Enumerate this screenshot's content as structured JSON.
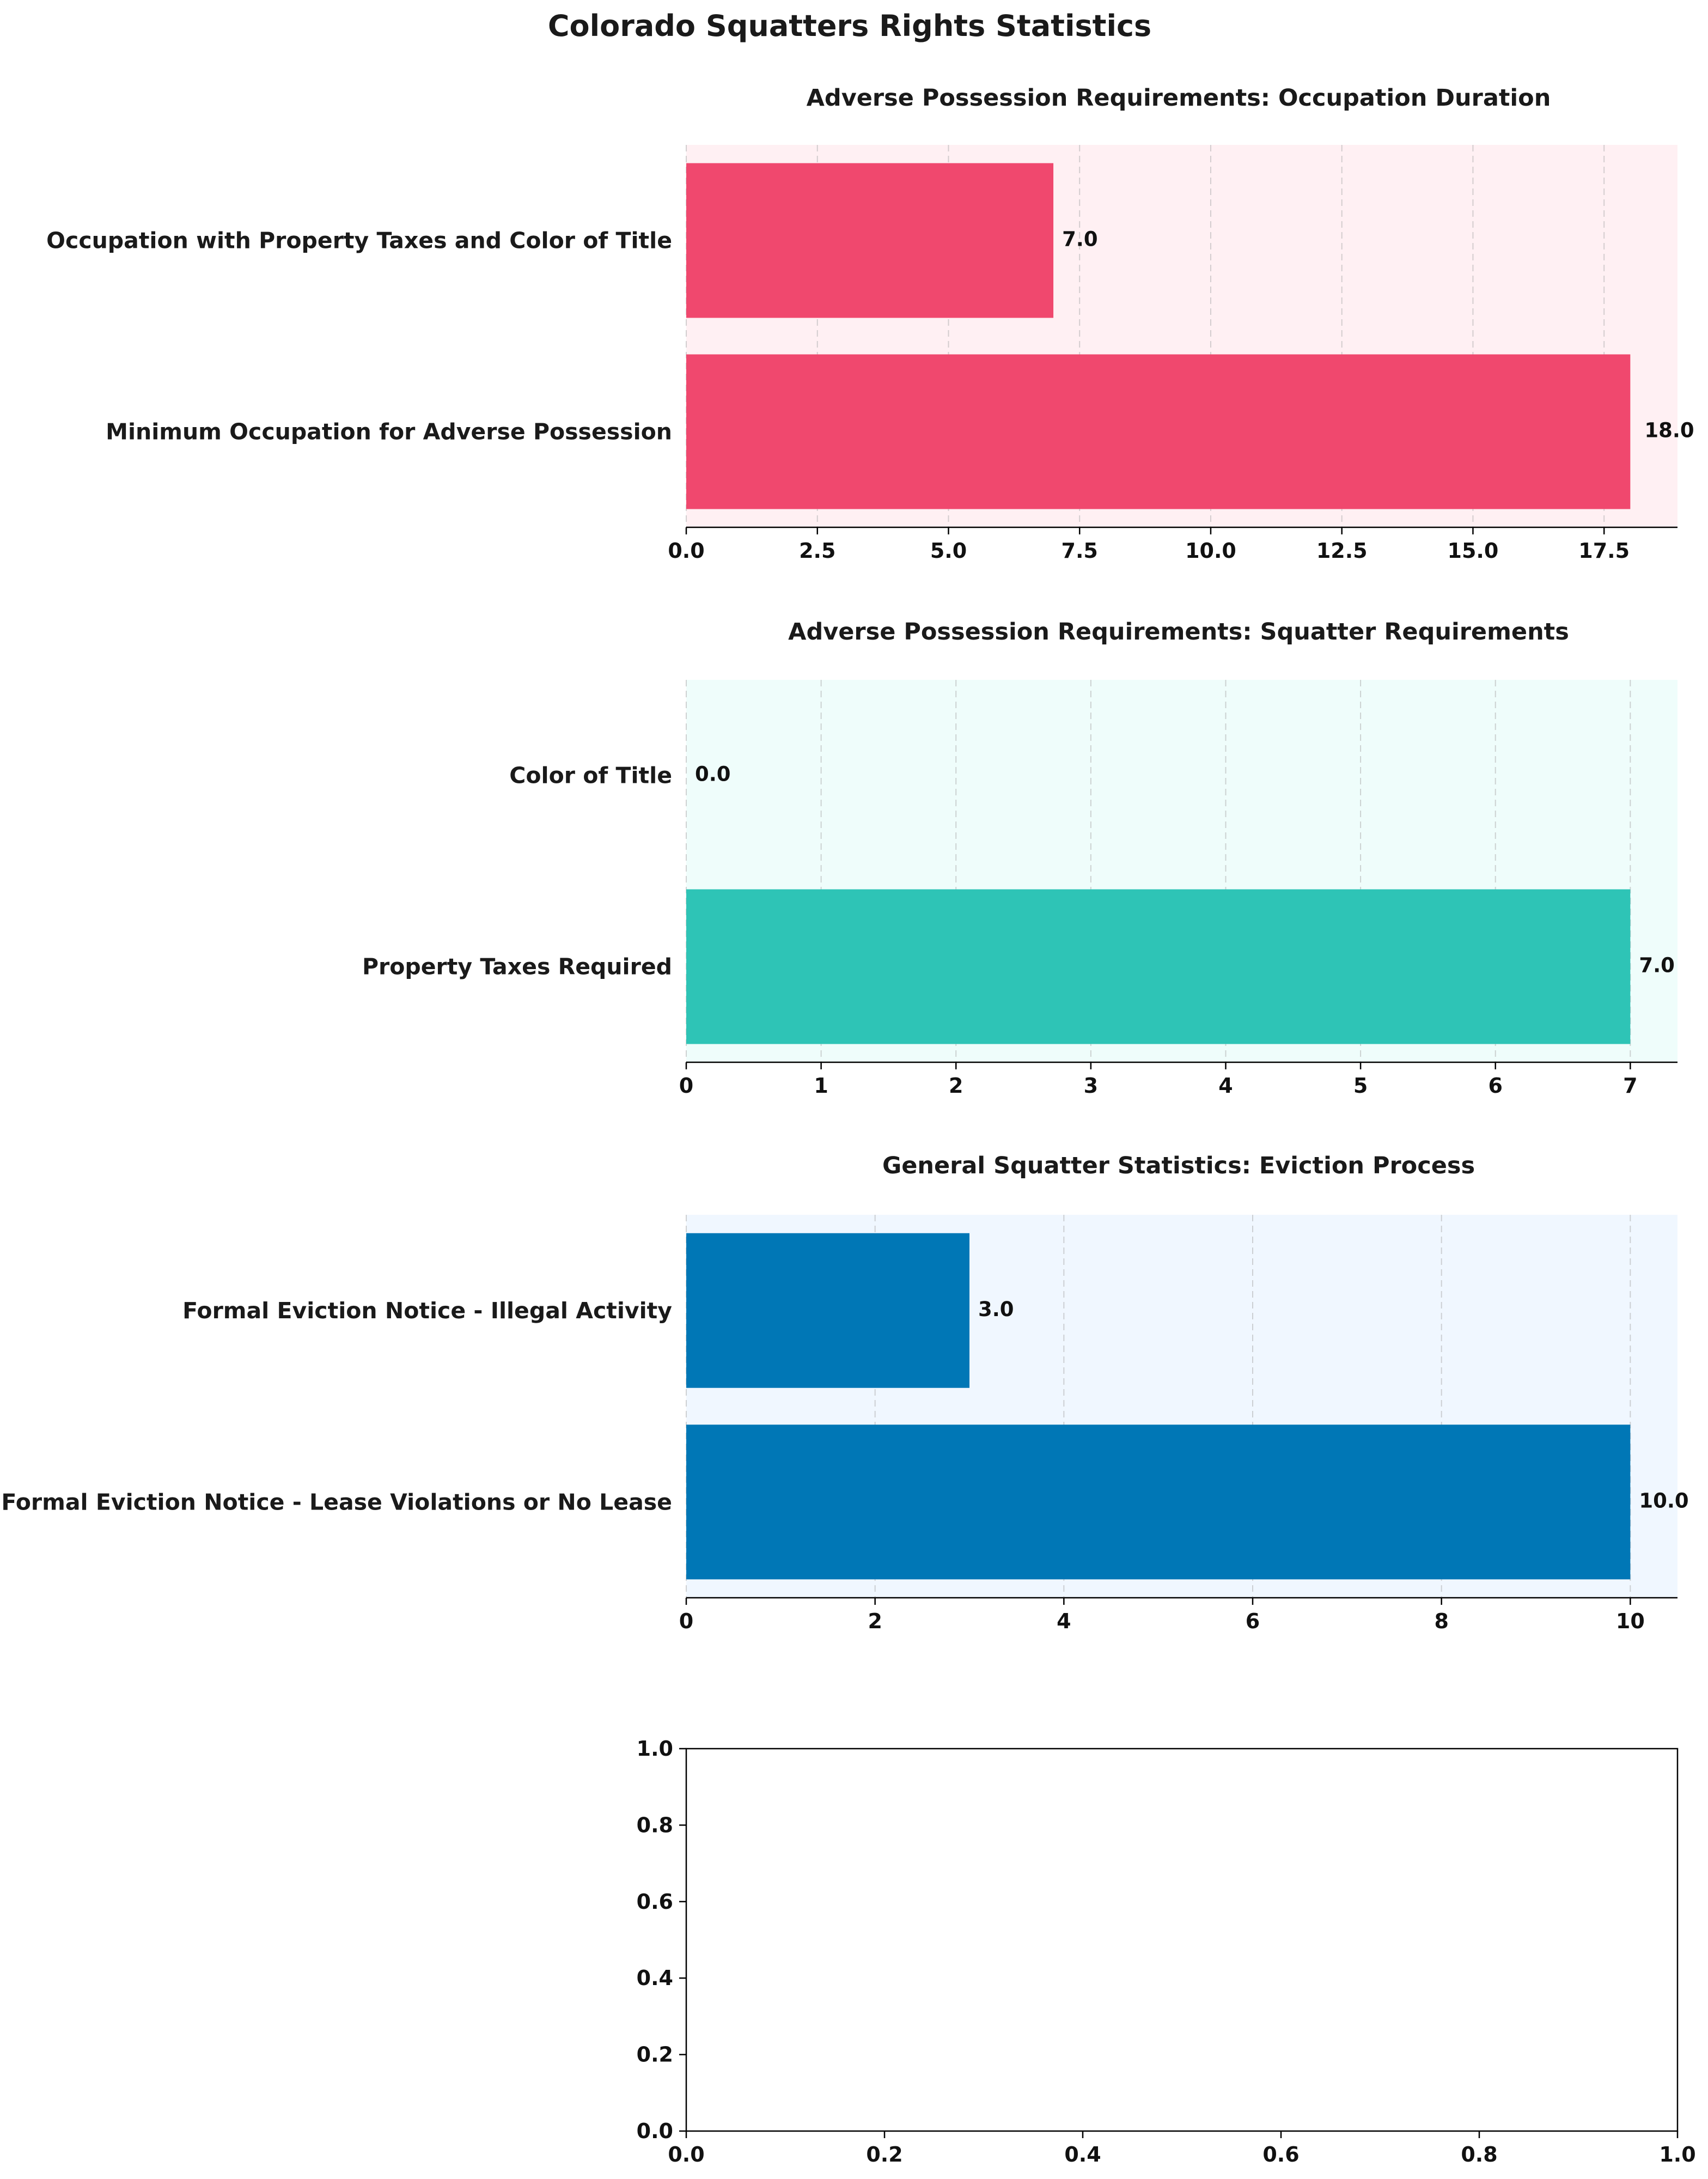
{
  "figure": {
    "title": "Colorado Squatters Rights Statistics"
  },
  "chart_data": [
    {
      "type": "bar",
      "orientation": "horizontal",
      "title": "Adverse Possession Requirements: Occupation Duration",
      "categories": [
        "Minimum Occupation for Adverse Possession",
        "Occupation with Property Taxes and Color of Title"
      ],
      "values": [
        18,
        7
      ],
      "value_labels": [
        "18.0",
        "7.0"
      ],
      "xlim": [
        0,
        18.9
      ],
      "xticks": [
        0,
        2.5,
        5,
        7.5,
        10,
        12.5,
        15,
        17.5
      ],
      "xtick_labels": [
        "0.0",
        "2.5",
        "5.0",
        "7.5",
        "10.0",
        "12.5",
        "15.0",
        "17.5"
      ],
      "bar_color": "#f0486e",
      "background_color": "#fff0f3",
      "grid": true,
      "xlabel": "",
      "ylabel": ""
    },
    {
      "type": "bar",
      "orientation": "horizontal",
      "title": "Adverse Possession Requirements: Squatter Requirements",
      "categories": [
        "Property Taxes Required",
        "Color of Title"
      ],
      "values": [
        7,
        0
      ],
      "value_labels": [
        "7.0",
        "0.0"
      ],
      "xlim": [
        0,
        7.35
      ],
      "xticks": [
        0,
        1,
        2,
        3,
        4,
        5,
        6,
        7
      ],
      "xtick_labels": [
        "0",
        "1",
        "2",
        "3",
        "4",
        "5",
        "6",
        "7"
      ],
      "bar_color": "#2ec4b6",
      "background_color": "#effdfb",
      "grid": true,
      "xlabel": "",
      "ylabel": ""
    },
    {
      "type": "bar",
      "orientation": "horizontal",
      "title": "General Squatter Statistics: Eviction Process",
      "categories": [
        "Formal Eviction Notice - Lease Violations or No Lease",
        "Formal Eviction Notice - Illegal Activity"
      ],
      "values": [
        10,
        3
      ],
      "value_labels": [
        "10.0",
        "3.0"
      ],
      "xlim": [
        0,
        10.5
      ],
      "xticks": [
        0,
        2,
        4,
        6,
        8,
        10
      ],
      "xtick_labels": [
        "0",
        "2",
        "4",
        "6",
        "8",
        "10"
      ],
      "bar_color": "#0077b6",
      "background_color": "#f0f7ff",
      "grid": true,
      "xlabel": "",
      "ylabel": ""
    },
    {
      "type": "empty",
      "title": "",
      "xlim": [
        0,
        1
      ],
      "ylim": [
        0,
        1
      ],
      "xticks": [
        0,
        0.2,
        0.4,
        0.6,
        0.8,
        1
      ],
      "xtick_labels": [
        "0.0",
        "0.2",
        "0.4",
        "0.6",
        "0.8",
        "1.0"
      ],
      "yticks": [
        0,
        0.2,
        0.4,
        0.6,
        0.8,
        1
      ],
      "ytick_labels": [
        "0.0",
        "0.2",
        "0.4",
        "0.6",
        "0.8",
        "1.0"
      ],
      "grid": false,
      "xlabel": "",
      "ylabel": ""
    }
  ]
}
